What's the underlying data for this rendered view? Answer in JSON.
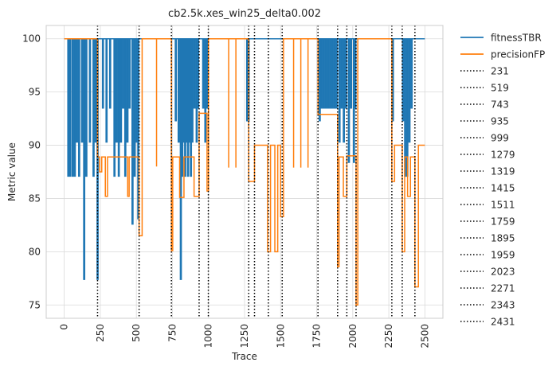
{
  "chart_data": {
    "type": "line",
    "title": "cb2.5k.xes_win25_delta0.002",
    "xlabel": "Trace",
    "ylabel": "Metric value",
    "xlim": [
      -125,
      2625
    ],
    "ylim": [
      73.75,
      101.25
    ],
    "xticks": [
      0,
      250,
      500,
      750,
      1000,
      1250,
      1500,
      1750,
      2000,
      2250,
      2500
    ],
    "yticks": [
      75,
      80,
      85,
      90,
      95,
      100
    ],
    "grid": true,
    "legend_position": "outside-right",
    "colors": {
      "fitness": "#1f77b4",
      "precision": "#ff7f0e",
      "vline": "#000000"
    },
    "series": [
      {
        "name": "fitnessTBR",
        "color": "#1f77b4",
        "x_start": 0,
        "x_end": 2500,
        "baseline": 100,
        "dips": [
          {
            "x": 25,
            "y": 87.1
          },
          {
            "x": 38,
            "y": 87.1
          },
          {
            "x": 55,
            "y": 87.1
          },
          {
            "x": 70,
            "y": 87.1
          },
          {
            "x": 85,
            "y": 90.3
          },
          {
            "x": 100,
            "y": 87.1
          },
          {
            "x": 120,
            "y": 90.3
          },
          {
            "x": 135,
            "y": 77.4
          },
          {
            "x": 150,
            "y": 87.1
          },
          {
            "x": 175,
            "y": 90.3
          },
          {
            "x": 200,
            "y": 87.1
          },
          {
            "x": 215,
            "y": 90.3
          },
          {
            "x": 228,
            "y": 77.4
          },
          {
            "x": 265,
            "y": 93.5
          },
          {
            "x": 290,
            "y": 90.3
          },
          {
            "x": 315,
            "y": 93.5
          },
          {
            "x": 345,
            "y": 87.1
          },
          {
            "x": 360,
            "y": 90.3
          },
          {
            "x": 375,
            "y": 87.1
          },
          {
            "x": 390,
            "y": 90.3
          },
          {
            "x": 405,
            "y": 93.5
          },
          {
            "x": 420,
            "y": 87.1
          },
          {
            "x": 435,
            "y": 90.3
          },
          {
            "x": 450,
            "y": 93.5
          },
          {
            "x": 470,
            "y": 82.6
          },
          {
            "x": 485,
            "y": 87.1
          },
          {
            "x": 500,
            "y": 90.3
          },
          {
            "x": 510,
            "y": 83.1
          },
          {
            "x": 770,
            "y": 92.3
          },
          {
            "x": 790,
            "y": 90.3
          },
          {
            "x": 805,
            "y": 77.4
          },
          {
            "x": 815,
            "y": 87.1
          },
          {
            "x": 825,
            "y": 90.3
          },
          {
            "x": 835,
            "y": 87.1
          },
          {
            "x": 845,
            "y": 90.3
          },
          {
            "x": 855,
            "y": 87.1
          },
          {
            "x": 865,
            "y": 90.3
          },
          {
            "x": 875,
            "y": 87.1
          },
          {
            "x": 885,
            "y": 90.3
          },
          {
            "x": 900,
            "y": 93.5
          },
          {
            "x": 915,
            "y": 90.3
          },
          {
            "x": 925,
            "y": 93.5
          },
          {
            "x": 960,
            "y": 93.5
          },
          {
            "x": 975,
            "y": 90.3
          },
          {
            "x": 985,
            "y": 93.5
          },
          {
            "x": 1265,
            "y": 92.3
          },
          {
            "x": 1275,
            "y": 92.3
          },
          {
            "x": 1768,
            "y": 92.3
          },
          {
            "x": 1780,
            "y": 93.5
          },
          {
            "x": 1795,
            "y": 93.5
          },
          {
            "x": 1810,
            "y": 93.5
          },
          {
            "x": 1825,
            "y": 93.5
          },
          {
            "x": 1840,
            "y": 93.5
          },
          {
            "x": 1855,
            "y": 93.5
          },
          {
            "x": 1870,
            "y": 93.5
          },
          {
            "x": 1885,
            "y": 93.5
          },
          {
            "x": 1905,
            "y": 90.3
          },
          {
            "x": 1920,
            "y": 93.5
          },
          {
            "x": 1935,
            "y": 90.3
          },
          {
            "x": 1950,
            "y": 93.5
          },
          {
            "x": 1970,
            "y": 88.4
          },
          {
            "x": 1985,
            "y": 93.5
          },
          {
            "x": 2005,
            "y": 88.4
          },
          {
            "x": 2015,
            "y": 93.5
          },
          {
            "x": 2275,
            "y": 92.3
          },
          {
            "x": 2345,
            "y": 92.3
          },
          {
            "x": 2360,
            "y": 87.1
          },
          {
            "x": 2375,
            "y": 87.1
          },
          {
            "x": 2390,
            "y": 90.3
          },
          {
            "x": 2405,
            "y": 93.5
          }
        ]
      },
      {
        "name": "precisionFP",
        "color": "#ff7f0e",
        "points": [
          [
            0,
            100
          ],
          [
            231,
            100
          ],
          [
            231,
            88.9
          ],
          [
            245,
            88.9
          ],
          [
            245,
            87.5
          ],
          [
            260,
            87.5
          ],
          [
            260,
            88.9
          ],
          [
            285,
            88.9
          ],
          [
            285,
            85.2
          ],
          [
            300,
            85.2
          ],
          [
            300,
            88.9
          ],
          [
            440,
            88.9
          ],
          [
            440,
            85.2
          ],
          [
            450,
            85.2
          ],
          [
            450,
            88.9
          ],
          [
            519,
            88.9
          ],
          [
            519,
            81.5
          ],
          [
            540,
            81.5
          ],
          [
            540,
            100
          ],
          [
            743,
            100
          ],
          [
            743,
            80.1
          ],
          [
            752,
            80.1
          ],
          [
            752,
            88.9
          ],
          [
            800,
            88.9
          ],
          [
            800,
            85.1
          ],
          [
            830,
            85.1
          ],
          [
            830,
            88.9
          ],
          [
            900,
            88.9
          ],
          [
            900,
            85.2
          ],
          [
            935,
            85.2
          ],
          [
            935,
            93.0
          ],
          [
            990,
            93.0
          ],
          [
            990,
            85.7
          ],
          [
            1000,
            85.7
          ],
          [
            1000,
            100
          ],
          [
            1279,
            100
          ],
          [
            1279,
            86.6
          ],
          [
            1319,
            86.6
          ],
          [
            1319,
            90.0
          ],
          [
            1410,
            90.0
          ],
          [
            1410,
            80.0
          ],
          [
            1430,
            80.0
          ],
          [
            1430,
            90.0
          ],
          [
            1460,
            90.0
          ],
          [
            1460,
            80.0
          ],
          [
            1480,
            80.0
          ],
          [
            1480,
            90.0
          ],
          [
            1500,
            90.0
          ],
          [
            1500,
            83.3
          ],
          [
            1520,
            83.3
          ],
          [
            1520,
            100
          ],
          [
            1759,
            100
          ],
          [
            1759,
            92.9
          ],
          [
            1895,
            92.9
          ],
          [
            1895,
            78.6
          ],
          [
            1905,
            78.6
          ],
          [
            1905,
            88.9
          ],
          [
            1935,
            88.9
          ],
          [
            1935,
            85.2
          ],
          [
            1959,
            85.2
          ],
          [
            1959,
            89.0
          ],
          [
            2023,
            89.0
          ],
          [
            2023,
            75.0
          ],
          [
            2035,
            75.0
          ],
          [
            2035,
            100
          ],
          [
            2271,
            100
          ],
          [
            2271,
            86.6
          ],
          [
            2290,
            86.6
          ],
          [
            2290,
            90.0
          ],
          [
            2343,
            90.0
          ],
          [
            2343,
            80.0
          ],
          [
            2360,
            80.0
          ],
          [
            2360,
            88.9
          ],
          [
            2380,
            88.9
          ],
          [
            2380,
            85.2
          ],
          [
            2400,
            85.2
          ],
          [
            2400,
            88.9
          ],
          [
            2431,
            88.9
          ],
          [
            2431,
            76.7
          ],
          [
            2455,
            76.7
          ],
          [
            2455,
            90.0
          ],
          [
            2500,
            90.0
          ]
        ],
        "spikes": [
          {
            "x": 640,
            "y": 88.0
          },
          {
            "x": 1140,
            "y": 87.9
          },
          {
            "x": 1190,
            "y": 87.9
          },
          {
            "x": 1590,
            "y": 87.9
          },
          {
            "x": 1640,
            "y": 87.9
          },
          {
            "x": 1690,
            "y": 87.9
          }
        ]
      }
    ],
    "vlines": [
      231,
      519,
      743,
      935,
      999,
      1279,
      1319,
      1415,
      1511,
      1759,
      1895,
      1959,
      2023,
      2271,
      2343,
      2431
    ],
    "vline_labels": [
      "231",
      "519",
      "743",
      "935",
      "999",
      "1279",
      "1319",
      "1415",
      "1511",
      "1759",
      "1895",
      "1959",
      "2023",
      "2271",
      "2343",
      "2431"
    ]
  }
}
